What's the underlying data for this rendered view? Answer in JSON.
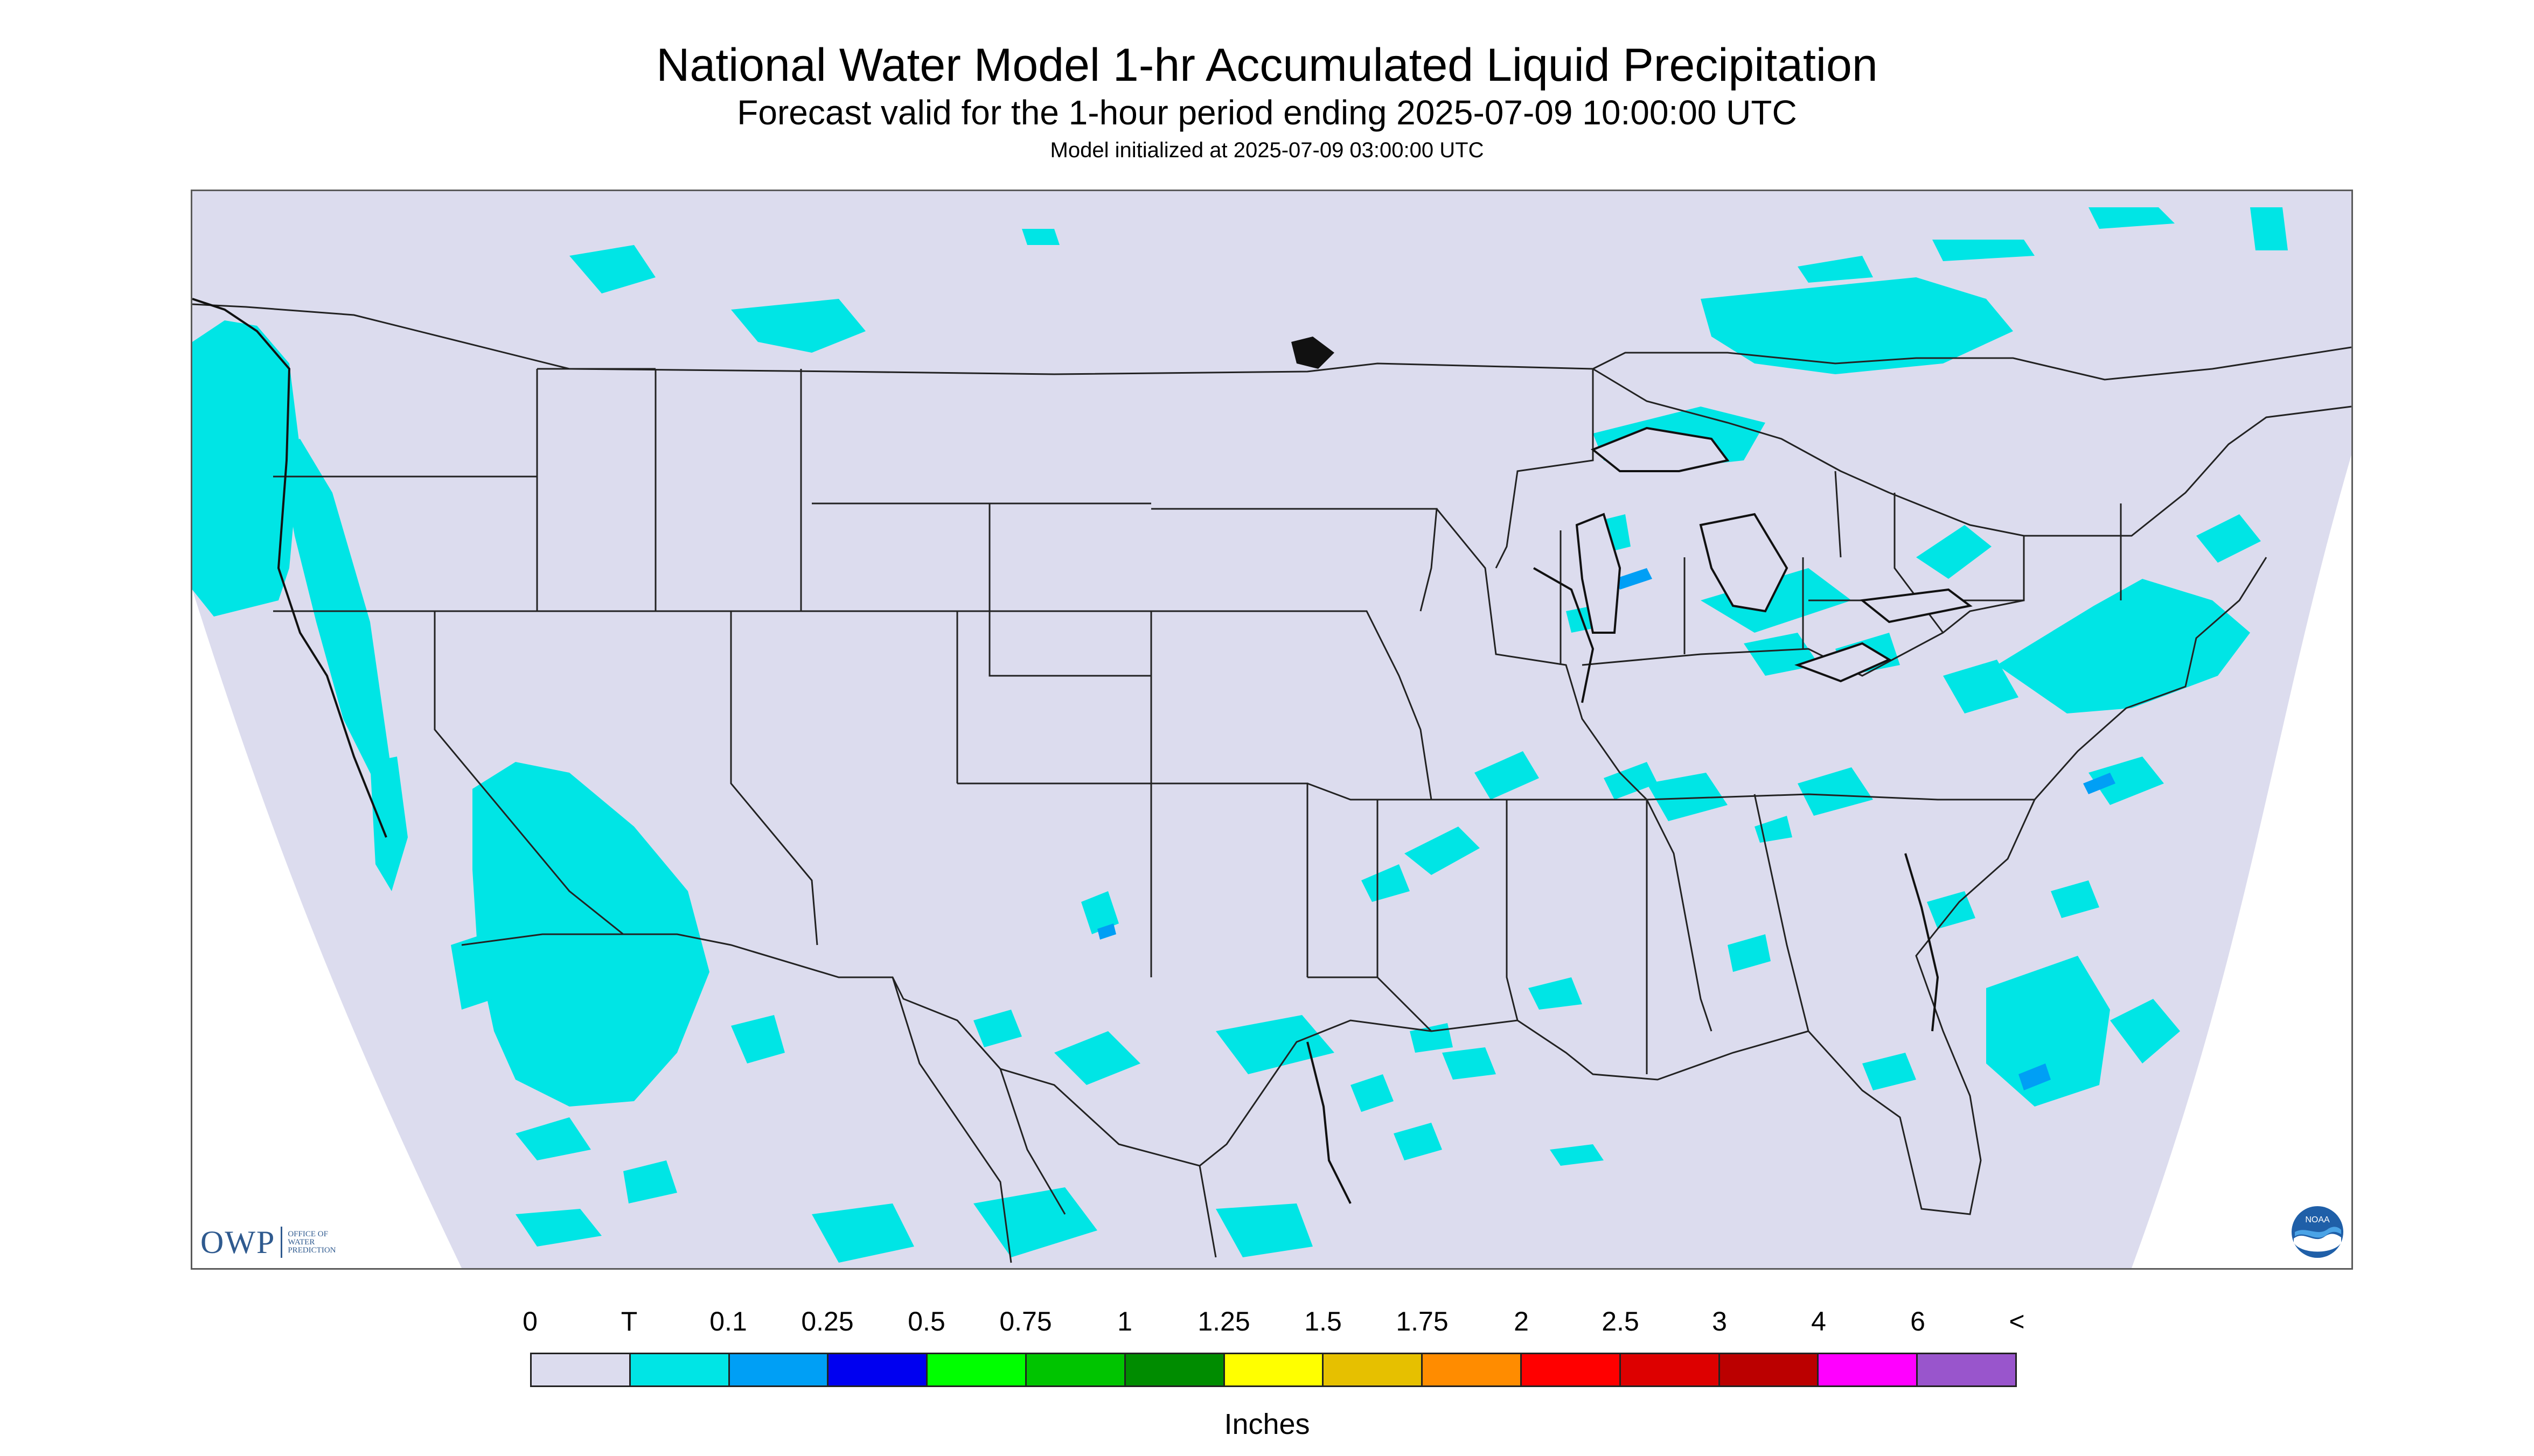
{
  "title": "National Water Model 1-hr Accumulated Liquid Precipitation",
  "subtitle": "Forecast valid for the 1-hour period ending 2025-07-09 10:00:00 UTC",
  "init_line": "Model initialized at 2025-07-09 03:00:00 UTC",
  "colors": {
    "background": "#dcdcee",
    "trace": "#00e5e5",
    "borders": "#222222"
  },
  "logos": {
    "owp_text": "OWP",
    "owp_sub": [
      "OFFICE OF",
      "WATER",
      "PREDICTION"
    ],
    "noaa_text": "NOAA"
  },
  "legend": {
    "labels": [
      "0",
      "T",
      "0.1",
      "0.25",
      "0.5",
      "0.75",
      "1",
      "1.25",
      "1.5",
      "1.75",
      "2",
      "2.5",
      "3",
      "4",
      "6",
      "<"
    ],
    "colors": [
      "#dcdcee",
      "#00e5e5",
      "#009ff5",
      "#0000f0",
      "#00ff00",
      "#00c400",
      "#008c00",
      "#ffff00",
      "#e6c000",
      "#ff8c00",
      "#ff0000",
      "#dd0000",
      "#bb0000",
      "#ff00ff",
      "#9955cc"
    ],
    "units": "Inches"
  }
}
